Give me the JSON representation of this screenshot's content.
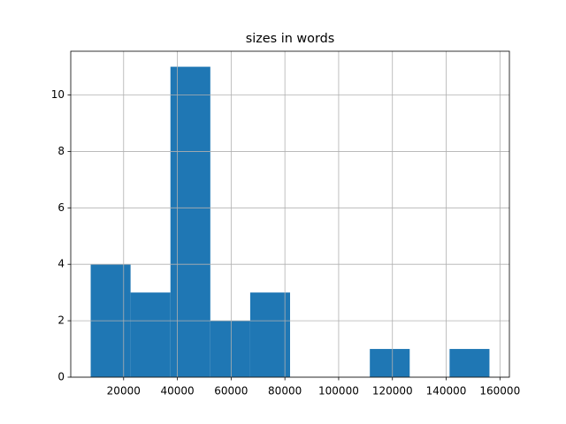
{
  "chart_data": {
    "type": "histogram",
    "title": "sizes in words",
    "bins": [
      7750,
      22585,
      37420,
      52255,
      67090,
      81925,
      96760,
      111595,
      126430,
      141265,
      156100
    ],
    "counts": [
      4,
      3,
      11,
      2,
      3,
      0,
      0,
      1,
      0,
      1
    ],
    "color": "#1f77b4",
    "xlim": [
      332,
      163518
    ],
    "xticks": [
      20000,
      40000,
      60000,
      80000,
      100000,
      120000,
      140000,
      160000
    ],
    "ylim": [
      0,
      11.55
    ],
    "yticks": [
      0,
      2,
      4,
      6,
      8,
      10
    ],
    "grid": true
  }
}
